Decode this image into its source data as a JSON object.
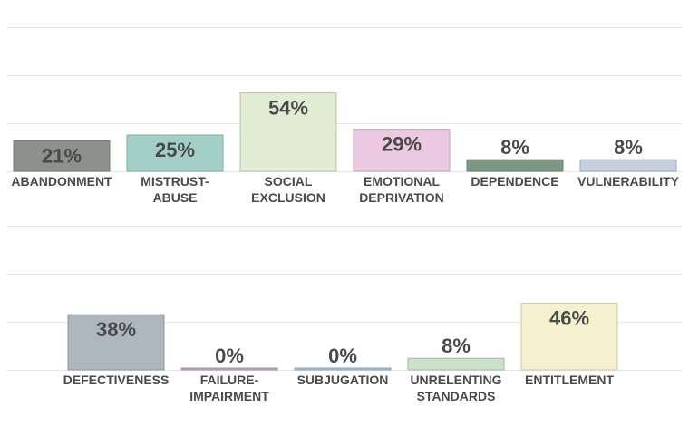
{
  "chart_data": [
    {
      "type": "bar",
      "categories": [
        "ABANDONMENT",
        "MISTRUST-ABUSE",
        "SOCIAL EXCLUSION",
        "EMOTIONAL DEPRIVATION",
        "DEPENDENCE",
        "VULNERABILITY"
      ],
      "category_lines": [
        [
          "ABANDONMENT"
        ],
        [
          "MISTRUST-",
          "ABUSE"
        ],
        [
          "SOCIAL",
          "EXCLUSION"
        ],
        [
          "EMOTIONAL",
          "DEPRIVATION"
        ],
        [
          "DEPENDENCE"
        ],
        [
          "VULNERABILITY"
        ]
      ],
      "values": [
        21,
        25,
        54,
        29,
        8,
        8
      ],
      "value_labels": [
        "21%",
        "25%",
        "54%",
        "29%",
        "8%",
        "8%"
      ],
      "colors": [
        "#8d918c",
        "#a2d0c7",
        "#e2ecd2",
        "#ecc9e2",
        "#7e9983",
        "#c5cfdd"
      ],
      "ylim": [
        0,
        100
      ],
      "grid": true
    },
    {
      "type": "bar",
      "categories": [
        "DEFECTIVENESS",
        "FAILURE-IMPAIRMENT",
        "SUBJUGATION",
        "UNRELENTING STANDARDS",
        "ENTITLEMENT"
      ],
      "category_lines": [
        [
          "DEFECTIVENESS"
        ],
        [
          "FAILURE-",
          "IMPAIRMENT"
        ],
        [
          "SUBJUGATION"
        ],
        [
          "UNRELENTING",
          "STANDARDS"
        ],
        [
          "ENTITLEMENT"
        ]
      ],
      "values": [
        38,
        0,
        0,
        8,
        46
      ],
      "value_labels": [
        "38%",
        "0%",
        "0%",
        "8%",
        "46%"
      ],
      "colors": [
        "#aeb6be",
        "#c8a8cc",
        "#a7c4dc",
        "#c9e2c8",
        "#f5f1cf"
      ],
      "ylim": [
        0,
        100
      ],
      "grid": true
    }
  ]
}
